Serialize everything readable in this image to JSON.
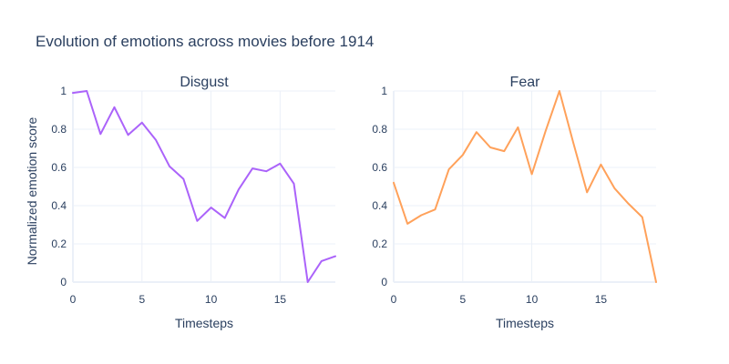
{
  "chart_data": {
    "title": "Evolution of emotions across movies before 1914",
    "ylabel": "Normalized emotion score",
    "subplots": [
      {
        "type": "line",
        "title": "Disgust",
        "xlabel": "Timesteps",
        "color": "#ab63fa",
        "xlim": [
          0,
          19
        ],
        "ylim": [
          0,
          1
        ],
        "x_ticks": [
          0,
          5,
          10,
          15
        ],
        "y_ticks": [
          0,
          0.2,
          0.4,
          0.6,
          0.8,
          1
        ],
        "x": [
          0,
          1,
          2,
          3,
          4,
          5,
          6,
          7,
          8,
          9,
          10,
          11,
          12,
          13,
          14,
          15,
          16,
          17,
          18,
          19
        ],
        "y": [
          0.99,
          1.0,
          0.775,
          0.915,
          0.77,
          0.835,
          0.745,
          0.605,
          0.54,
          0.32,
          0.39,
          0.335,
          0.485,
          0.595,
          0.58,
          0.62,
          0.515,
          0.0,
          0.11,
          0.135
        ]
      },
      {
        "type": "line",
        "title": "Fear",
        "xlabel": "Timesteps",
        "color": "#ffa15a",
        "xlim": [
          0,
          19
        ],
        "ylim": [
          0,
          1
        ],
        "x_ticks": [
          0,
          5,
          10,
          15
        ],
        "y_ticks": [
          0,
          0.2,
          0.4,
          0.6,
          0.8,
          1
        ],
        "x": [
          0,
          1,
          2,
          3,
          4,
          5,
          6,
          7,
          8,
          9,
          10,
          11,
          12,
          13,
          14,
          15,
          16,
          17,
          18,
          19
        ],
        "y": [
          0.52,
          0.305,
          0.35,
          0.38,
          0.59,
          0.665,
          0.785,
          0.705,
          0.685,
          0.81,
          0.565,
          0.79,
          1.0,
          0.73,
          0.47,
          0.615,
          0.49,
          0.41,
          0.34,
          0.0
        ]
      }
    ]
  }
}
